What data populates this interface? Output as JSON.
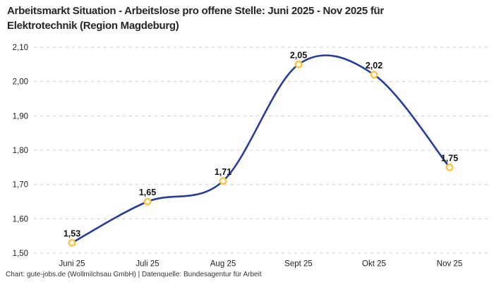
{
  "header": {
    "title_lines": [
      "Arbeitsmarkt Situation - Arbeitslose pro offene Stelle: Juni 2025 - Nov 2025 für",
      "Elektrotechnik (Region Magdeburg)"
    ]
  },
  "footer": {
    "credit": "Chart: gute-jobs.de (Wollmilchsau GmbH) | Datenquelle: Bundesagentur für Arbeit"
  },
  "chart_data": {
    "type": "line",
    "title": "Arbeitsmarkt Situation - Arbeitslose pro offene Stelle: Juni 2025 - Nov 2025 für Elektrotechnik (Region Magdeburg)",
    "categories": [
      "Juni 25",
      "Juli 25",
      "Aug 25",
      "Sept 25",
      "Okt 25",
      "Nov 25"
    ],
    "values": [
      1.53,
      1.65,
      1.71,
      2.05,
      2.02,
      1.75
    ],
    "value_labels": [
      "1,53",
      "1,65",
      "1,71",
      "2,05",
      "2,02",
      "1,75"
    ],
    "ylim": [
      1.5,
      2.1
    ],
    "ytick_values": [
      1.5,
      1.6,
      1.7,
      1.8,
      1.9,
      2.0,
      2.1
    ],
    "ytick_labels": [
      "1,50",
      "1,60",
      "1,70",
      "1,80",
      "1,90",
      "2,00",
      "2,10"
    ],
    "xlabel": "",
    "ylabel": "",
    "grid": "dashed-horizontal",
    "legend": "none",
    "line_color": "#263c9c",
    "marker_color": "#fdc43c",
    "marker_fill": "#ffffff",
    "grid_color": "#cccccc"
  }
}
